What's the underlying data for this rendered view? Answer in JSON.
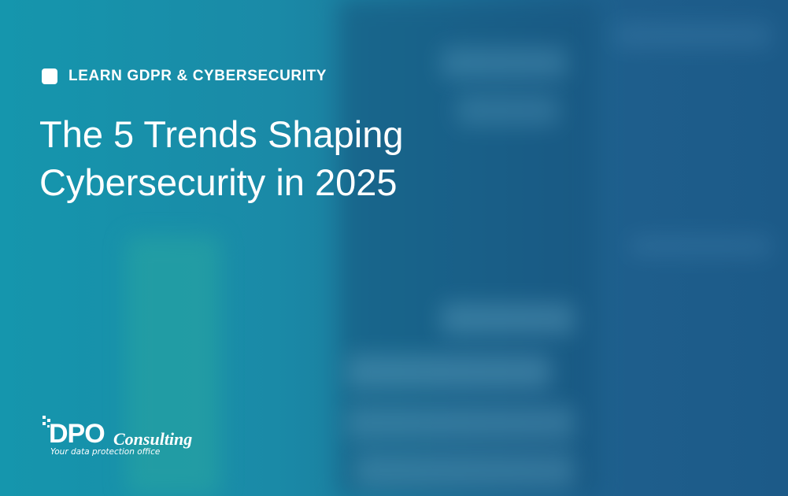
{
  "category": "LEARN GDPR & CYBERSECURITY",
  "title_lines": [
    "The 5 Trends Shaping",
    "Cybersecurity in 2025"
  ],
  "logo": {
    "mark": "DPO",
    "word": "Consulting",
    "tagline": "Your data protection office"
  }
}
